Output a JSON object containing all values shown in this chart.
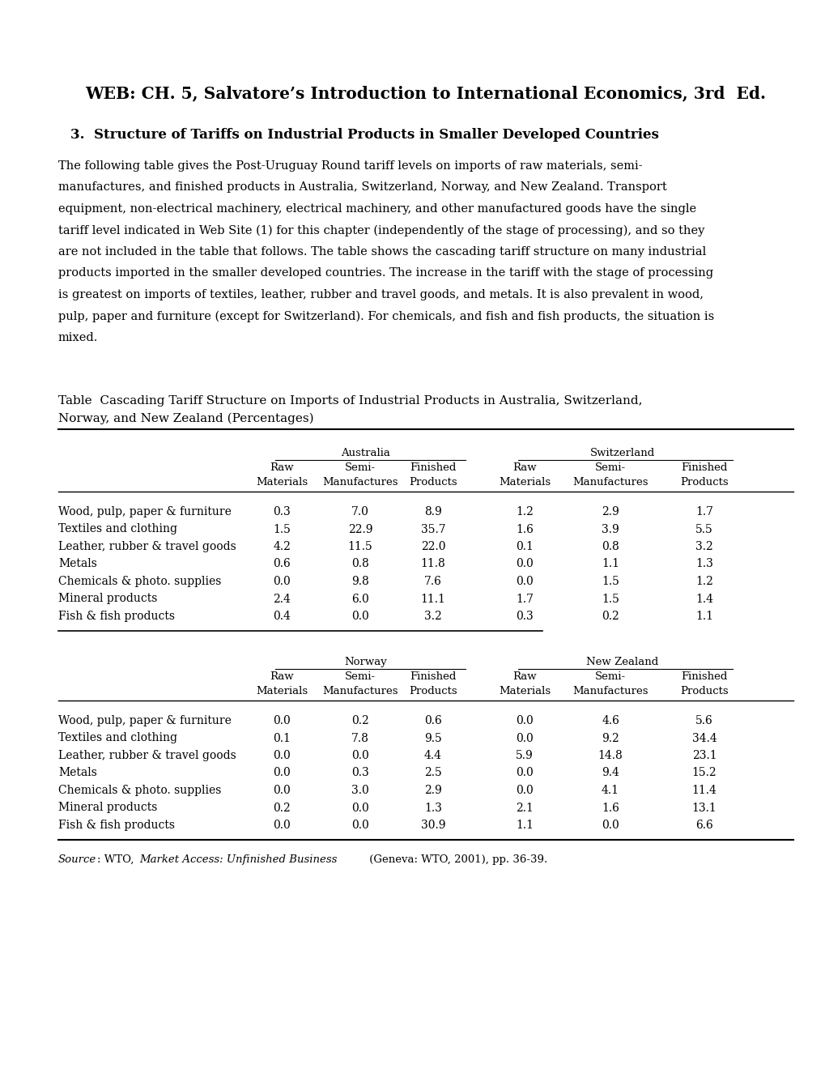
{
  "title": "WEB: CH. 5, Salvatore’s Introduction to International Economics, 3rd  Ed.",
  "subtitle": "3.  Structure of Tariffs on Industrial Products in Smaller Developed Countries",
  "body_lines": [
    "The following table gives the Post-Uruguay Round tariff levels on imports of raw materials, semi-",
    "manufactures, and finished products in Australia, Switzerland, Norway, and New Zealand. Transport",
    "equipment, non-electrical machinery, electrical machinery, and other manufactured goods have the single",
    "tariff level indicated in Web Site (1) for this chapter (independently of the stage of processing), and so they",
    "are not included in the table that follows. The table shows the cascading tariff structure on many industrial",
    "products imported in the smaller developed countries. The increase in the tariff with the stage of processing",
    "is greatest on imports of textiles, leather, rubber and travel goods, and metals. It is also prevalent in wood,",
    "pulp, paper and furniture (except for Switzerland). For chemicals, and fish and fish products, the situation is",
    "mixed."
  ],
  "table_title_line1": "Table  Cascading Tariff Structure on Imports of Industrial Products in Australia, Switzerland, ",
  "table_title_line2": "Norway, and New Zealand (Percentages)",
  "categories": [
    "Wood, pulp, paper & furniture",
    "Textiles and clothing",
    "Leather, rubber & travel goods",
    "Metals",
    "Chemicals & photo. supplies",
    "Mineral products",
    "Fish & fish products"
  ],
  "australia": {
    "raw": [
      0.3,
      1.5,
      4.2,
      0.6,
      0.0,
      2.4,
      0.4
    ],
    "semi": [
      7.0,
      22.9,
      11.5,
      0.8,
      9.8,
      6.0,
      0.0
    ],
    "finished": [
      8.9,
      35.7,
      22.0,
      11.8,
      7.6,
      11.1,
      3.2
    ]
  },
  "switzerland": {
    "raw": [
      1.2,
      1.6,
      0.1,
      0.0,
      0.0,
      1.7,
      0.3
    ],
    "semi": [
      2.9,
      3.9,
      0.8,
      1.1,
      1.5,
      1.5,
      0.2
    ],
    "finished": [
      1.7,
      5.5,
      3.2,
      1.3,
      1.2,
      1.4,
      1.1
    ]
  },
  "norway": {
    "raw": [
      0.0,
      0.1,
      0.0,
      0.0,
      0.0,
      0.2,
      0.0
    ],
    "semi": [
      0.2,
      7.8,
      0.0,
      0.3,
      3.0,
      0.0,
      0.0
    ],
    "finished": [
      0.6,
      9.5,
      4.4,
      2.5,
      2.9,
      1.3,
      30.9
    ]
  },
  "new_zealand": {
    "raw": [
      0.0,
      0.0,
      5.9,
      0.0,
      0.0,
      2.1,
      1.1
    ],
    "semi": [
      4.6,
      9.2,
      14.8,
      9.4,
      4.1,
      1.6,
      0.0
    ],
    "finished": [
      5.6,
      34.4,
      23.1,
      15.2,
      11.4,
      13.1,
      6.6
    ]
  },
  "bg_color": "#ffffff",
  "text_color": "#000000",
  "title_fontsize": 14.5,
  "subtitle_fontsize": 12,
  "body_fontsize": 10.5,
  "table_title_fontsize": 11,
  "header_fontsize": 9.5,
  "data_fontsize": 10,
  "source_fontsize": 9.5
}
